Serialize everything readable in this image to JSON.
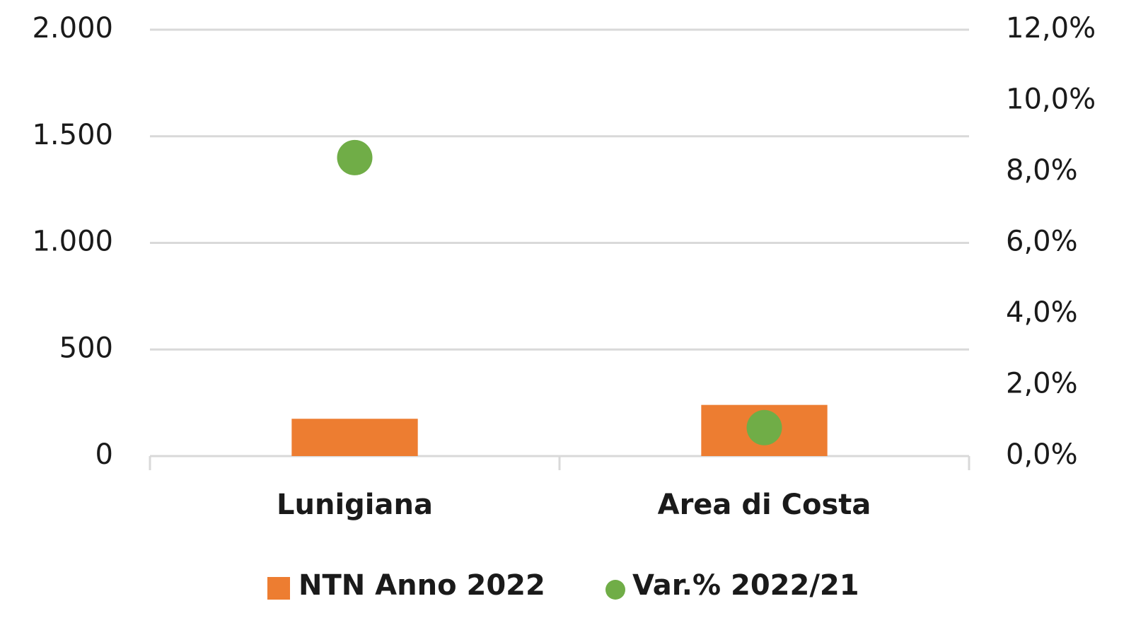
{
  "chart_data": {
    "type": "bar",
    "categories": [
      "Lunigiana",
      "Area di Costa"
    ],
    "series": [
      {
        "name": "NTN Anno 2022",
        "color": "#ed7d31",
        "values": [
          175,
          240
        ]
      },
      {
        "name": "Var.% 2022/21",
        "color": "#70ad47",
        "marker": "circle",
        "axis": "y2",
        "values": [
          8.4,
          0.8
        ]
      }
    ],
    "ylim": [
      0,
      2000
    ],
    "yticks": [
      0,
      500,
      {
        "value": 1000,
        "label": "1.000"
      },
      {
        "value": 1500,
        "label": "1.500"
      },
      {
        "value": 2000,
        "label": "2.000"
      }
    ],
    "y2lim": [
      0,
      12
    ],
    "y2ticks": [
      {
        "value": 0,
        "label": "0,0%"
      },
      {
        "value": 2,
        "label": "2,0%"
      },
      {
        "value": 4,
        "label": "4,0%"
      },
      {
        "value": 6,
        "label": "6,0%"
      },
      {
        "value": 8,
        "label": "8,0%"
      },
      {
        "value": 10,
        "label": "10,0%"
      },
      {
        "value": 12,
        "label": "12,0%"
      }
    ],
    "grid": true,
    "legend": "bottom"
  }
}
